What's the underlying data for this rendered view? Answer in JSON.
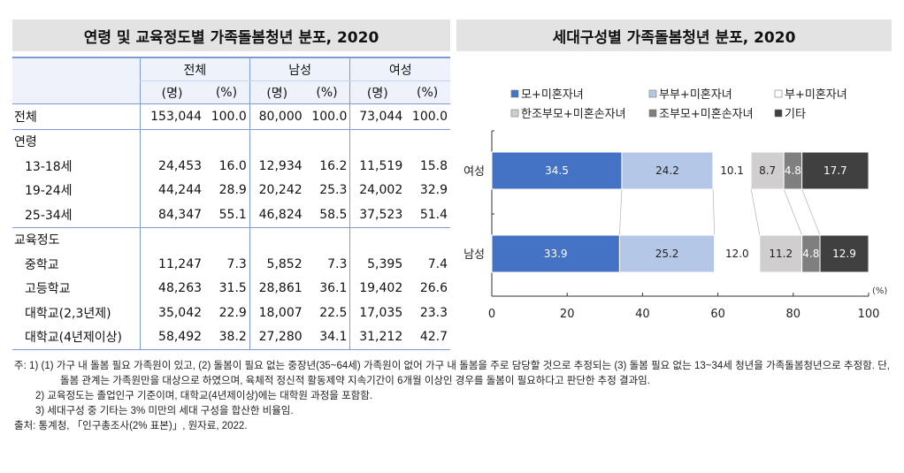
{
  "left_title": "연령 및 교육정도별 가족돌봄청년 분포, 2020",
  "right_title": "세대구성별 가족돌봄청년 분포, 2020",
  "table": {
    "groups": [
      "전체",
      "남성",
      "여성"
    ],
    "units": [
      "(명)",
      "(%)",
      "(명)",
      "(%)",
      "(명)",
      "(%)"
    ],
    "rows": [
      {
        "label": "전체",
        "values": [
          "153,044",
          "100.0",
          "80,000",
          "100.0",
          "73,044",
          "100.0"
        ]
      },
      {
        "label": "연령",
        "values": [
          "",
          "",
          "",
          "",
          "",
          ""
        ]
      },
      {
        "label": "13-18세",
        "values": [
          "24,453",
          "16.0",
          "12,934",
          "16.2",
          "11,519",
          "15.8"
        ]
      },
      {
        "label": "19-24세",
        "values": [
          "44,244",
          "28.9",
          "20,242",
          "25.3",
          "24,002",
          "32.9"
        ]
      },
      {
        "label": "25-34세",
        "values": [
          "84,347",
          "55.1",
          "46,824",
          "58.5",
          "37,523",
          "51.4"
        ]
      },
      {
        "label": "교육정도",
        "values": [
          "",
          "",
          "",
          "",
          "",
          ""
        ]
      },
      {
        "label": "중학교",
        "values": [
          "11,247",
          "7.3",
          "5,852",
          "7.3",
          "5,395",
          "7.4"
        ]
      },
      {
        "label": "고등학교",
        "values": [
          "48,263",
          "31.5",
          "28,861",
          "36.1",
          "19,402",
          "26.6"
        ]
      },
      {
        "label": "대학교(2,3년제)",
        "values": [
          "35,042",
          "22.9",
          "18,007",
          "22.5",
          "17,035",
          "23.3"
        ]
      },
      {
        "label": "대학교(4년제이상)",
        "values": [
          "58,492",
          "38.2",
          "27,280",
          "34.1",
          "31,212",
          "42.7"
        ]
      }
    ]
  },
  "chart_data": {
    "type": "bar",
    "orientation": "horizontal",
    "stacked": true,
    "categories": [
      "여성",
      "남성"
    ],
    "series": [
      {
        "name": "모+미혼자녀",
        "values": [
          34.5,
          33.9
        ],
        "color": "#4472c4"
      },
      {
        "name": "부부+미혼자녀",
        "values": [
          24.2,
          25.2
        ],
        "color": "#b4c7e7"
      },
      {
        "name": "부+미혼자녀",
        "values": [
          10.1,
          12.0
        ],
        "color": "#ffffff"
      },
      {
        "name": "한조부모+미혼손자녀",
        "values": [
          8.7,
          11.2
        ],
        "color": "#d0cece"
      },
      {
        "name": "조부모+미혼손자녀",
        "values": [
          4.8,
          4.8
        ],
        "color": "#7f7f7f"
      },
      {
        "name": "기타",
        "values": [
          17.7,
          12.9
        ],
        "color": "#404040"
      }
    ],
    "xlim": [
      0,
      100
    ],
    "xticks": [
      0,
      20,
      40,
      60,
      80,
      100
    ],
    "xunit": "(%)",
    "legend": "top",
    "grid": false
  },
  "notes": [
    "주: 1) (1) 가구 내 돌봄 필요 가족원이 있고, (2) 돌봄이 필요 없는 중장년(35~64세) 가족원이 없어 가구 내 돌봄을 주로 담당할 것으로 추정되는 (3) 돌봄 필요 없는 13~34세 청년을 가족돌봄청년으로 추정함. 단, 돌봄 관계는 가족원만을 대상으로 하였으며, 육체적 정신적 활동제약 지속기간이 6개월 이상인 경우를 돌봄이 필요하다고 판단한 추정 결과임.",
    "2) 교육정도는 졸업인구 기준이며, 대학교(4년제이상)에는 대학원 과정을 포함함.",
    "3) 세대구성 중 기타는 3% 미만의 세대 구성을 합산한 비율임.",
    "출처: 통계청, 「인구총조사(2% 표본)」, 원자료, 2022."
  ]
}
